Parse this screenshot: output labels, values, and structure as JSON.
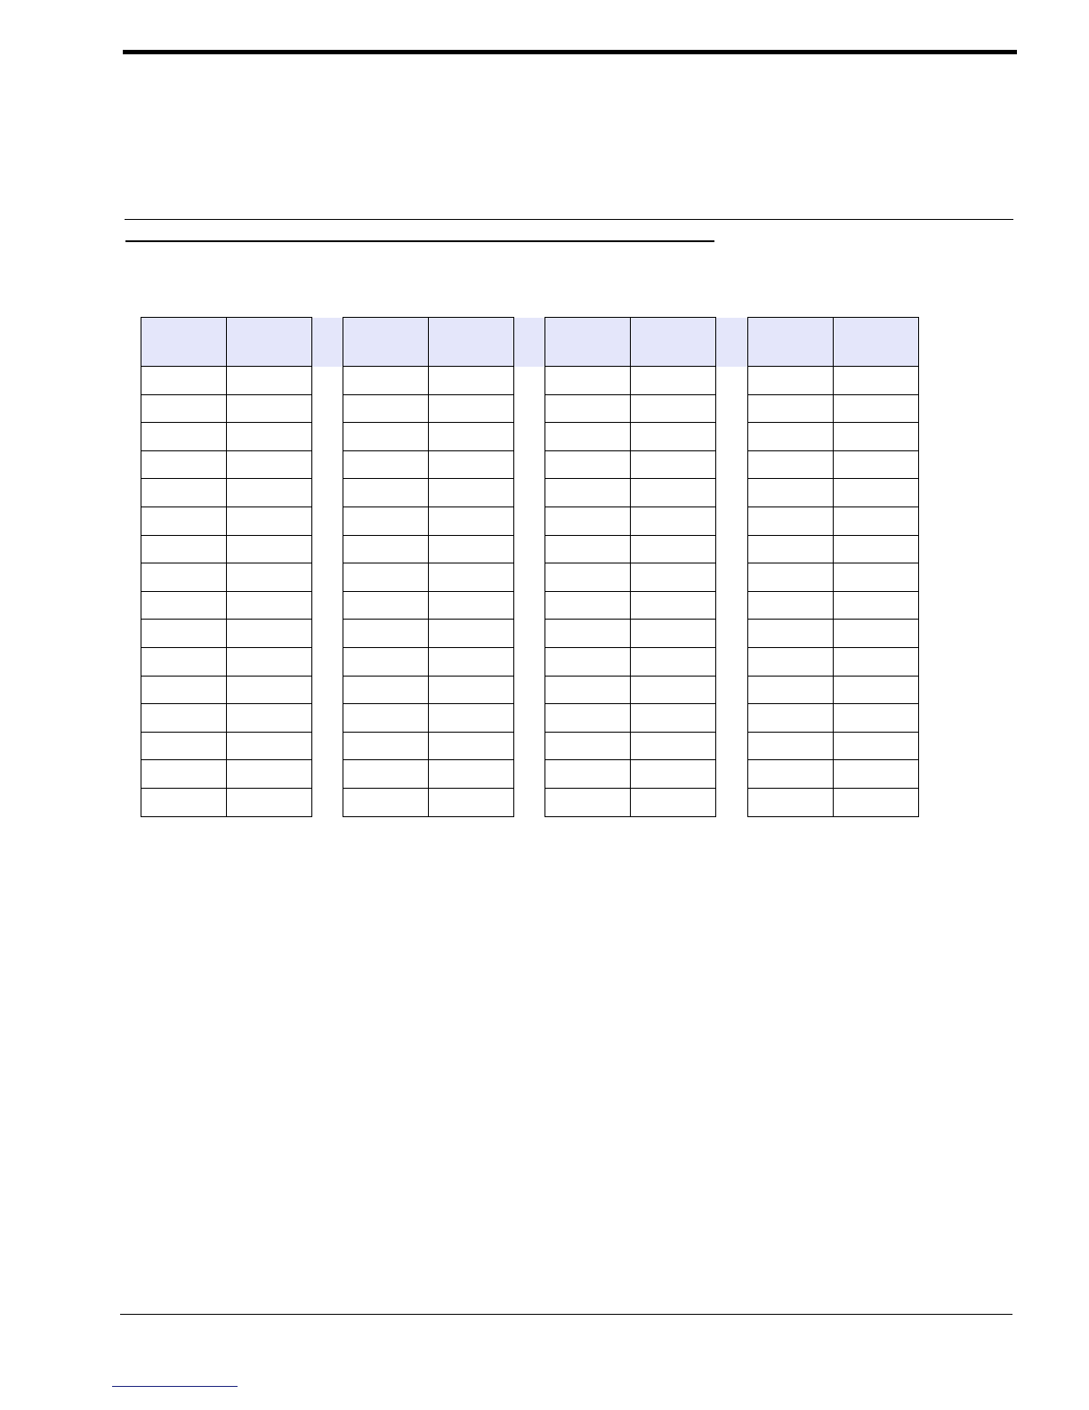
{
  "colors": {
    "header_fill": "#e4e6fa",
    "rule": "#000000",
    "link_underline": "#1a237e"
  },
  "tables": [
    {
      "columns": [
        "",
        ""
      ],
      "rows": [
        [
          "",
          ""
        ],
        [
          "",
          ""
        ],
        [
          "",
          ""
        ],
        [
          "",
          ""
        ],
        [
          "",
          ""
        ],
        [
          "",
          ""
        ],
        [
          "",
          ""
        ],
        [
          "",
          ""
        ],
        [
          "",
          ""
        ],
        [
          "",
          ""
        ],
        [
          "",
          ""
        ],
        [
          "",
          ""
        ],
        [
          "",
          ""
        ],
        [
          "",
          ""
        ],
        [
          "",
          ""
        ],
        [
          "",
          ""
        ]
      ]
    },
    {
      "columns": [
        "",
        ""
      ],
      "rows": [
        [
          "",
          ""
        ],
        [
          "",
          ""
        ],
        [
          "",
          ""
        ],
        [
          "",
          ""
        ],
        [
          "",
          ""
        ],
        [
          "",
          ""
        ],
        [
          "",
          ""
        ],
        [
          "",
          ""
        ],
        [
          "",
          ""
        ],
        [
          "",
          ""
        ],
        [
          "",
          ""
        ],
        [
          "",
          ""
        ],
        [
          "",
          ""
        ],
        [
          "",
          ""
        ],
        [
          "",
          ""
        ],
        [
          "",
          ""
        ]
      ]
    },
    {
      "columns": [
        "",
        ""
      ],
      "rows": [
        [
          "",
          ""
        ],
        [
          "",
          ""
        ],
        [
          "",
          ""
        ],
        [
          "",
          ""
        ],
        [
          "",
          ""
        ],
        [
          "",
          ""
        ],
        [
          "",
          ""
        ],
        [
          "",
          ""
        ],
        [
          "",
          ""
        ],
        [
          "",
          ""
        ],
        [
          "",
          ""
        ],
        [
          "",
          ""
        ],
        [
          "",
          ""
        ],
        [
          "",
          ""
        ],
        [
          "",
          ""
        ],
        [
          "",
          ""
        ]
      ]
    },
    {
      "columns": [
        "",
        ""
      ],
      "rows": [
        [
          "",
          ""
        ],
        [
          "",
          ""
        ],
        [
          "",
          ""
        ],
        [
          "",
          ""
        ],
        [
          "",
          ""
        ],
        [
          "",
          ""
        ],
        [
          "",
          ""
        ],
        [
          "",
          ""
        ],
        [
          "",
          ""
        ],
        [
          "",
          ""
        ],
        [
          "",
          ""
        ],
        [
          "",
          ""
        ],
        [
          "",
          ""
        ],
        [
          "",
          ""
        ],
        [
          "",
          ""
        ],
        [
          "",
          ""
        ]
      ]
    }
  ]
}
